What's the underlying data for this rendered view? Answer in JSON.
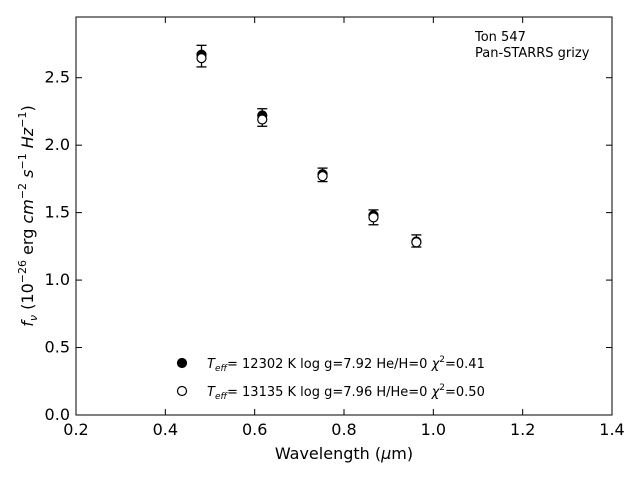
{
  "chart_data": {
    "type": "scatter",
    "title": "",
    "xlabel": "Wavelength (μm)",
    "ylabel": "f_ν (10^-26 erg cm^-2 s^-1 Hz^-1)",
    "xlim": [
      0.2,
      1.4
    ],
    "ylim": [
      0.0,
      2.95
    ],
    "x_ticks": [
      "0.2",
      "0.4",
      "0.6",
      "0.8",
      "1.0",
      "1.2",
      "1.4"
    ],
    "y_ticks": [
      "0.0",
      "0.5",
      "1.0",
      "1.5",
      "2.0",
      "2.5"
    ],
    "annotation": [
      "Ton 547",
      "Pan-STARRS grizy"
    ],
    "observed": [
      {
        "x": 0.481,
        "y": 2.66,
        "err": 0.08
      },
      {
        "x": 0.617,
        "y": 2.205,
        "err": 0.065
      },
      {
        "x": 0.752,
        "y": 1.78,
        "err": 0.05
      },
      {
        "x": 0.866,
        "y": 1.465,
        "err": 0.055
      },
      {
        "x": 0.962,
        "y": 1.29,
        "err": 0.045
      }
    ],
    "series": [
      {
        "marker": "filled",
        "values": [
          2.67,
          2.22,
          1.785,
          1.48,
          1.285
        ]
      },
      {
        "marker": "open",
        "values": [
          2.645,
          2.19,
          1.77,
          1.465,
          1.28
        ]
      }
    ],
    "legend": {
      "placement": "lower-center",
      "entries": [
        {
          "marker": "filled",
          "teff": "T",
          "teff_sub": "eff",
          "text": "= 12302 K  log g=7.92  He/H=0  ",
          "chi": "χ",
          "chi_sup": "2",
          "chi_val": "=0.41"
        },
        {
          "marker": "open",
          "teff": "T",
          "teff_sub": "eff",
          "text": "= 13135 K  log g=7.96  H/He=0  ",
          "chi": "χ",
          "chi_sup": "2",
          "chi_val": "=0.50"
        }
      ]
    },
    "grid": false
  }
}
